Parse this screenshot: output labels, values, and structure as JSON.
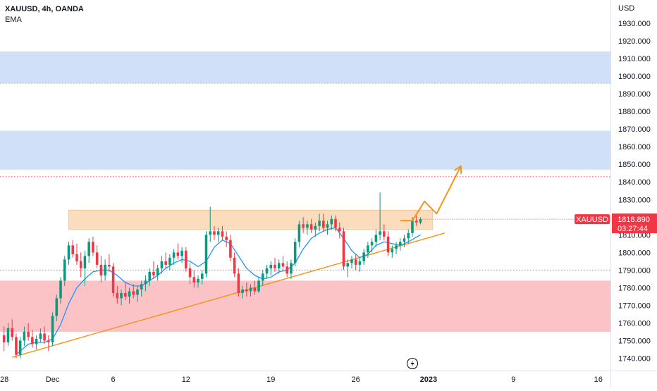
{
  "legend": {
    "symbol": "XAUUSD, 4h, OANDA",
    "indicator": "EMA"
  },
  "price_scale": {
    "currency": "USD",
    "ticks": [
      "1930.000",
      "1920.000",
      "1910.000",
      "1900.000",
      "1890.000",
      "1880.000",
      "1870.000",
      "1860.000",
      "1850.000",
      "1840.000",
      "1830.000",
      "1820.000",
      "1810.000",
      "1800.000",
      "1790.000",
      "1780.000",
      "1770.000",
      "1760.000",
      "1750.000",
      "1740.000"
    ]
  },
  "time_scale": {
    "labels": [
      {
        "text": "28",
        "bar": 0
      },
      {
        "text": "Dec",
        "bar": 12
      },
      {
        "text": "6",
        "bar": 27
      },
      {
        "text": "12",
        "bar": 45
      },
      {
        "text": "19",
        "bar": 66
      },
      {
        "text": "26",
        "bar": 87
      },
      {
        "text": "2023",
        "bar": 105
      },
      {
        "text": "9",
        "bar": 126
      },
      {
        "text": "16",
        "bar": 147
      }
    ]
  },
  "current_price": {
    "symbol": "XAUUSD",
    "value": "1818.890",
    "countdown": "03:27:44",
    "color": "#f23645"
  },
  "colors": {
    "up": "#089981",
    "down": "#f23645",
    "ema": "#2196f3",
    "trendline": "#f7931a",
    "supply_zone": "#cfe0f8",
    "demand_zone": "#fbc3c6",
    "resistance_zone": "#fbdcbd"
  },
  "chart_data": {
    "type": "candlestick",
    "title": "XAUUSD, 4h, OANDA",
    "y_unit": "USD",
    "ylim": [
      1733,
      1940
    ],
    "x_bar_range": [
      -1,
      150
    ],
    "last_price": 1818.89,
    "candles_start": "Nov 28",
    "bar_interval": "4h",
    "candles": [
      [
        1753.0,
        1758.0,
        1744.0,
        1749.0
      ],
      [
        1749.0,
        1760.0,
        1747.0,
        1757.0
      ],
      [
        1757.0,
        1762.0,
        1750.0,
        1752.0
      ],
      [
        1752.0,
        1754.0,
        1740.0,
        1742.0
      ],
      [
        1742.0,
        1752.0,
        1740.0,
        1750.0
      ],
      [
        1750.0,
        1758.0,
        1747.0,
        1755.0
      ],
      [
        1755.0,
        1760.0,
        1750.0,
        1752.0
      ],
      [
        1752.0,
        1756.0,
        1746.0,
        1748.0
      ],
      [
        1748.0,
        1753.0,
        1745.0,
        1751.0
      ],
      [
        1751.0,
        1757.0,
        1749.0,
        1754.0
      ],
      [
        1754.0,
        1758.0,
        1748.0,
        1750.0
      ],
      [
        1750.0,
        1753.0,
        1744.0,
        1749.0
      ],
      [
        1749.0,
        1766.0,
        1747.0,
        1764.0
      ],
      [
        1764.0,
        1776.0,
        1761.0,
        1774.0
      ],
      [
        1774.0,
        1786.0,
        1771.0,
        1784.0
      ],
      [
        1784.0,
        1798.0,
        1781.0,
        1796.0
      ],
      [
        1796.0,
        1806.0,
        1793.0,
        1804.0
      ],
      [
        1804.0,
        1807.0,
        1797.0,
        1799.0
      ],
      [
        1799.0,
        1805.0,
        1793.0,
        1795.0
      ],
      [
        1795.0,
        1800.0,
        1786.0,
        1791.0
      ],
      [
        1791.0,
        1801.0,
        1781.0,
        1798.0
      ],
      [
        1798.0,
        1808.0,
        1794.0,
        1806.0
      ],
      [
        1806.0,
        1809.0,
        1798.0,
        1800.0
      ],
      [
        1800.0,
        1804.0,
        1791.0,
        1793.0
      ],
      [
        1793.0,
        1798.0,
        1783.0,
        1787.0
      ],
      [
        1787.0,
        1796.0,
        1784.0,
        1793.0
      ],
      [
        1793.0,
        1799.0,
        1789.0,
        1792.0
      ],
      [
        1792.0,
        1794.0,
        1775.0,
        1777.0
      ],
      [
        1777.0,
        1781.0,
        1771.0,
        1774.0
      ],
      [
        1774.0,
        1779.0,
        1770.0,
        1777.0
      ],
      [
        1777.0,
        1783.0,
        1773.0,
        1775.0
      ],
      [
        1775.0,
        1780.0,
        1771.0,
        1778.0
      ],
      [
        1778.0,
        1782.0,
        1774.0,
        1776.0
      ],
      [
        1776.0,
        1781.0,
        1772.0,
        1779.0
      ],
      [
        1779.0,
        1784.0,
        1775.0,
        1782.0
      ],
      [
        1782.0,
        1787.0,
        1778.0,
        1784.0
      ],
      [
        1784.0,
        1791.0,
        1781.0,
        1789.0
      ],
      [
        1789.0,
        1795.0,
        1785.0,
        1787.0
      ],
      [
        1787.0,
        1793.0,
        1784.0,
        1791.0
      ],
      [
        1791.0,
        1798.0,
        1788.0,
        1795.0
      ],
      [
        1795.0,
        1800.0,
        1791.0,
        1793.0
      ],
      [
        1793.0,
        1799.0,
        1790.0,
        1797.0
      ],
      [
        1797.0,
        1802.0,
        1793.0,
        1800.0
      ],
      [
        1800.0,
        1805.0,
        1796.0,
        1798.0
      ],
      [
        1798.0,
        1803.0,
        1794.0,
        1801.0
      ],
      [
        1801.0,
        1803.0,
        1789.0,
        1791.0
      ],
      [
        1791.0,
        1794.0,
        1782.0,
        1786.0
      ],
      [
        1786.0,
        1790.0,
        1780.0,
        1783.0
      ],
      [
        1783.0,
        1787.0,
        1780.0,
        1785.0
      ],
      [
        1785.0,
        1790.0,
        1782.0,
        1788.0
      ],
      [
        1788.0,
        1812.0,
        1786.0,
        1810.0
      ],
      [
        1810.0,
        1826.0,
        1806.0,
        1812.0
      ],
      [
        1812.0,
        1815.0,
        1807.0,
        1810.0
      ],
      [
        1810.0,
        1814.0,
        1806.0,
        1812.0
      ],
      [
        1812.0,
        1815.0,
        1807.0,
        1809.0
      ],
      [
        1809.0,
        1812.0,
        1803.0,
        1807.0
      ],
      [
        1807.0,
        1810.0,
        1795.0,
        1797.0
      ],
      [
        1797.0,
        1800.0,
        1786.0,
        1788.0
      ],
      [
        1788.0,
        1791.0,
        1775.0,
        1777.0
      ],
      [
        1777.0,
        1781.0,
        1774.0,
        1779.0
      ],
      [
        1779.0,
        1783.0,
        1775.0,
        1778.0
      ],
      [
        1778.0,
        1782.0,
        1775.0,
        1780.0
      ],
      [
        1780.0,
        1784.0,
        1776.0,
        1778.0
      ],
      [
        1778.0,
        1786.0,
        1777.0,
        1784.0
      ],
      [
        1784.0,
        1790.0,
        1781.0,
        1788.0
      ],
      [
        1788.0,
        1793.0,
        1785.0,
        1791.0
      ],
      [
        1791.0,
        1795.0,
        1787.0,
        1793.0
      ],
      [
        1793.0,
        1797.0,
        1789.0,
        1791.0
      ],
      [
        1791.0,
        1796.0,
        1788.0,
        1794.0
      ],
      [
        1794.0,
        1798.0,
        1790.0,
        1792.0
      ],
      [
        1792.0,
        1795.0,
        1786.0,
        1788.0
      ],
      [
        1788.0,
        1796.0,
        1785.0,
        1794.0
      ],
      [
        1794.0,
        1808.0,
        1792.0,
        1806.0
      ],
      [
        1806.0,
        1818.0,
        1803.0,
        1816.0
      ],
      [
        1816.0,
        1820.0,
        1811.0,
        1814.0
      ],
      [
        1814.0,
        1818.0,
        1810.0,
        1816.0
      ],
      [
        1816.0,
        1819.0,
        1811.0,
        1813.0
      ],
      [
        1813.0,
        1817.0,
        1809.0,
        1815.0
      ],
      [
        1815.0,
        1822.0,
        1812.0,
        1818.0
      ],
      [
        1818.0,
        1822.0,
        1812.0,
        1814.0
      ],
      [
        1814.0,
        1818.0,
        1810.0,
        1816.0
      ],
      [
        1816.0,
        1821.0,
        1813.0,
        1819.0
      ],
      [
        1819.0,
        1821.0,
        1812.0,
        1814.0
      ],
      [
        1814.0,
        1817.0,
        1808.0,
        1812.0
      ],
      [
        1812.0,
        1814.0,
        1790.0,
        1792.0
      ],
      [
        1792.0,
        1796.0,
        1786.0,
        1794.0
      ],
      [
        1794.0,
        1798.0,
        1791.0,
        1796.0
      ],
      [
        1796.0,
        1799.0,
        1790.0,
        1793.0
      ],
      [
        1793.0,
        1797.0,
        1789.0,
        1795.0
      ],
      [
        1795.0,
        1802.0,
        1793.0,
        1800.0
      ],
      [
        1800.0,
        1806.0,
        1797.0,
        1804.0
      ],
      [
        1804.0,
        1808.0,
        1800.0,
        1806.0
      ],
      [
        1806.0,
        1813.0,
        1803.0,
        1810.0
      ],
      [
        1810.0,
        1834.0,
        1807.0,
        1812.0
      ],
      [
        1812.0,
        1816.0,
        1807.0,
        1809.0
      ],
      [
        1809.0,
        1812.0,
        1798.0,
        1800.0
      ],
      [
        1800.0,
        1804.0,
        1797.0,
        1802.0
      ],
      [
        1802.0,
        1806.0,
        1799.0,
        1804.0
      ],
      [
        1804.0,
        1808.0,
        1801.0,
        1806.0
      ],
      [
        1806.0,
        1810.0,
        1803.0,
        1808.0
      ],
      [
        1808.0,
        1813.0,
        1805.0,
        1811.0
      ],
      [
        1811.0,
        1820.0,
        1809.0,
        1818.0
      ],
      [
        1818.0,
        1821.0,
        1815.0,
        1817.0
      ],
      [
        1817.0,
        1820.0,
        1816.0,
        1818.89
      ]
    ],
    "ema": {
      "start_bar": 3,
      "points": [
        [
          3,
          1742.0
        ],
        [
          6,
          1748.0
        ],
        [
          8,
          1749.0
        ],
        [
          10,
          1749.0
        ],
        [
          12,
          1751.0
        ],
        [
          14,
          1759.0
        ],
        [
          16,
          1771.0
        ],
        [
          18,
          1780.0
        ],
        [
          20,
          1785.0
        ],
        [
          22,
          1789.0
        ],
        [
          24,
          1790.0
        ],
        [
          26,
          1790.0
        ],
        [
          28,
          1787.0
        ],
        [
          30,
          1783.0
        ],
        [
          32,
          1781.0
        ],
        [
          34,
          1781.0
        ],
        [
          36,
          1784.0
        ],
        [
          38,
          1787.0
        ],
        [
          40,
          1791.0
        ],
        [
          42,
          1794.0
        ],
        [
          44,
          1796.0
        ],
        [
          46,
          1795.0
        ],
        [
          48,
          1792.0
        ],
        [
          50,
          1795.0
        ],
        [
          52,
          1803.0
        ],
        [
          54,
          1807.0
        ],
        [
          56,
          1805.0
        ],
        [
          58,
          1798.0
        ],
        [
          60,
          1791.0
        ],
        [
          62,
          1787.0
        ],
        [
          64,
          1785.0
        ],
        [
          66,
          1786.0
        ],
        [
          68,
          1789.0
        ],
        [
          70,
          1790.0
        ],
        [
          72,
          1794.0
        ],
        [
          74,
          1802.0
        ],
        [
          76,
          1808.0
        ],
        [
          78,
          1811.0
        ],
        [
          80,
          1813.0
        ],
        [
          82,
          1814.0
        ],
        [
          84,
          1808.0
        ],
        [
          86,
          1801.0
        ],
        [
          88,
          1797.0
        ],
        [
          90,
          1799.0
        ],
        [
          92,
          1804.0
        ],
        [
          94,
          1806.0
        ],
        [
          96,
          1805.0
        ],
        [
          98,
          1804.0
        ],
        [
          100,
          1806.0
        ],
        [
          103,
          1810.0
        ]
      ]
    },
    "zones": [
      {
        "type": "supply",
        "from": 1896,
        "to": 1914,
        "x_bar_range": [
          -1,
          150
        ]
      },
      {
        "type": "supply",
        "from": 1847,
        "to": 1869,
        "x_bar_range": [
          -1,
          150
        ]
      },
      {
        "type": "resistance",
        "from": 1813,
        "to": 1824,
        "x_bar_range": [
          16,
          106
        ]
      },
      {
        "type": "demand",
        "from": 1755,
        "to": 1784,
        "x_bar_range": [
          -1,
          150
        ]
      }
    ],
    "horizontal_levels": [
      1843,
      1790
    ],
    "trendline": {
      "from": [
        2,
        1740.5
      ],
      "to": [
        109,
        1811
      ]
    },
    "projection": [
      [
        98,
        1818
      ],
      [
        101,
        1818
      ],
      [
        104,
        1829
      ],
      [
        107,
        1822
      ],
      [
        113,
        1849
      ]
    ]
  }
}
